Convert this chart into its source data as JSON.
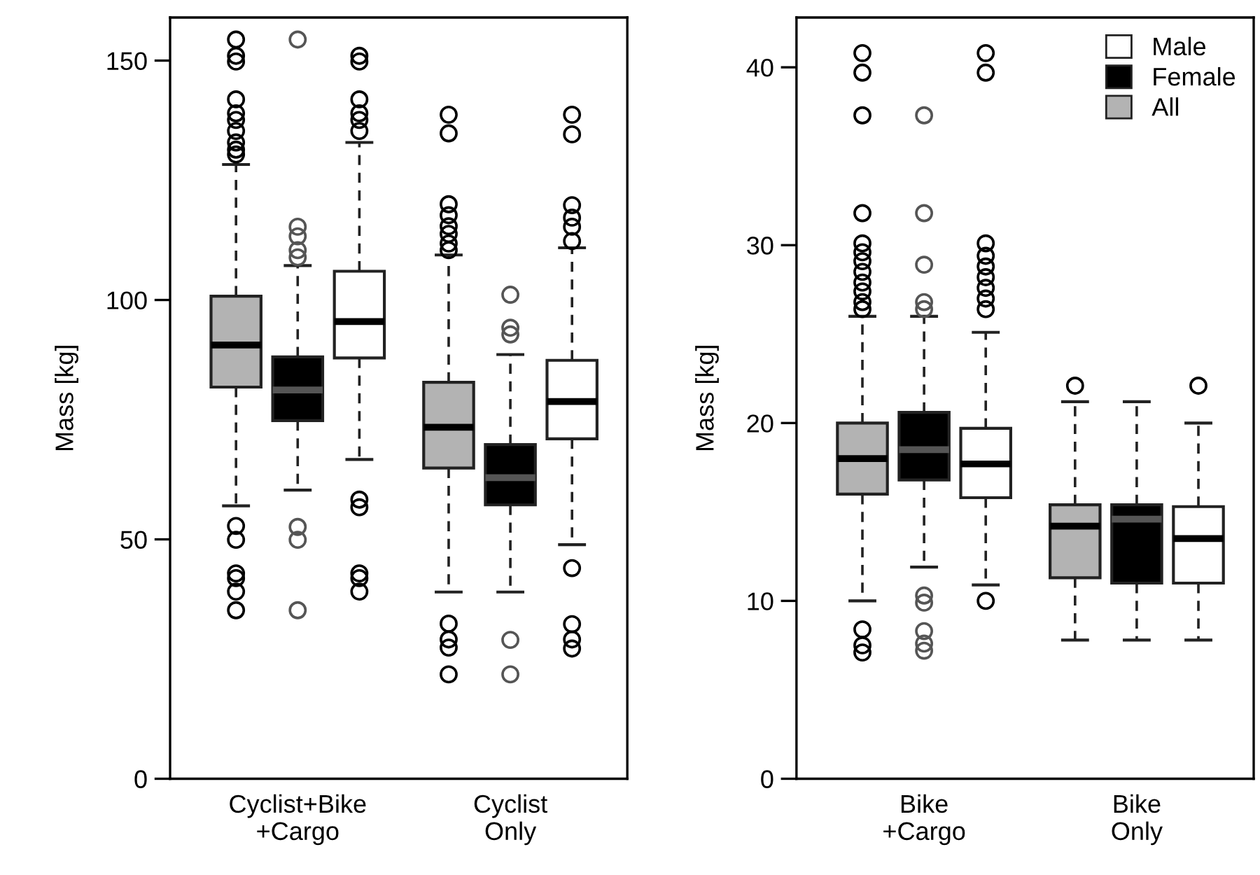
{
  "chart_data": [
    {
      "type": "box",
      "categories": [
        "Cyclist+Bike\n+Cargo",
        "Cyclist\nOnly"
      ],
      "ylabel": "Mass [kg]",
      "ylim": [
        0,
        159
      ],
      "yticks": [
        0,
        50,
        100,
        150
      ],
      "grid": false,
      "legend": false,
      "series": [
        {
          "color": "#b3b3b3",
          "boxes": [
            {
              "low": 57.0,
              "q1": 81.8,
              "median": 90.6,
              "q3": 100.8,
              "high": 128.3,
              "outliers": [
                154.4,
                151,
                149.8,
                141.9,
                139,
                137.6,
                135.3,
                132.9,
                131.4,
                130.4,
                52.8,
                49.9,
                42.9,
                41.9,
                39.1,
                35.2
              ]
            },
            {
              "low": 39.0,
              "q1": 64.9,
              "median": 73.4,
              "q3": 82.8,
              "high": 109.4,
              "outliers": [
                138.7,
                134.8,
                120,
                117.7,
                115.4,
                113.8,
                111.8,
                110.4,
                32.4,
                29.1,
                27.4,
                21.8
              ]
            }
          ]
        },
        {
          "color": "#000000",
          "boxes": [
            {
              "low": 60.3,
              "q1": 74.8,
              "median": 81.2,
              "q3": 88.1,
              "high": 107.2,
              "outliers": [
                154.4,
                115.3,
                113.3,
                110.4,
                108.9,
                52.6,
                49.9,
                35.2
              ]
            },
            {
              "low": 39.0,
              "q1": 57.2,
              "median": 62.9,
              "q3": 69.8,
              "high": 88.6,
              "outliers": [
                101.1,
                94.2,
                92.8,
                29,
                21.8
              ]
            }
          ]
        },
        {
          "color": "#ffffff",
          "boxes": [
            {
              "low": 66.7,
              "q1": 87.9,
              "median": 95.5,
              "q3": 106,
              "high": 132.9,
              "outliers": [
                151,
                149.8,
                141.9,
                139,
                137.6,
                135.3,
                58.3,
                56.7,
                42.9,
                41.9,
                39.1
              ]
            },
            {
              "low": 48.9,
              "q1": 71.0,
              "median": 78.8,
              "q3": 87.4,
              "high": 110.9,
              "outliers": [
                138.7,
                134.6,
                119.8,
                117.2,
                115.3,
                112.3,
                44.0,
                32.3,
                29.1,
                27.2
              ]
            }
          ]
        }
      ]
    },
    {
      "type": "box",
      "categories": [
        "Bike\n+Cargo",
        "Bike\nOnly"
      ],
      "ylabel": "Mass [kg]",
      "ylim": [
        0,
        42.8
      ],
      "yticks": [
        0,
        10,
        20,
        30,
        40
      ],
      "grid": false,
      "legend": "top right",
      "series": [
        {
          "name": "All",
          "color": "#b3b3b3",
          "boxes": [
            {
              "low": 10.0,
              "q1": 16.0,
              "median": 18.0,
              "q3": 20.0,
              "high": 26.0,
              "outliers": [
                40.8,
                39.7,
                37.3,
                31.8,
                30.1,
                29.6,
                29.1,
                28.5,
                27.9,
                27.4,
                26.8,
                26.4,
                8.4,
                7.5,
                7.1
              ]
            },
            {
              "low": 7.8,
              "q1": 11.3,
              "median": 14.2,
              "q3": 15.4,
              "high": 21.2,
              "outliers": [
                22.1
              ]
            }
          ]
        },
        {
          "name": "Female",
          "color": "#000000",
          "boxes": [
            {
              "low": 11.9,
              "q1": 16.8,
              "median": 18.5,
              "q3": 20.6,
              "high": 26.0,
              "outliers": [
                37.3,
                31.8,
                28.9,
                26.8,
                26.4,
                10.3,
                9.9,
                8.3,
                7.6,
                7.2
              ]
            },
            {
              "low": 7.8,
              "q1": 11.0,
              "median": 14.6,
              "q3": 15.4,
              "high": 21.2
            }
          ]
        },
        {
          "name": "Male",
          "color": "#ffffff",
          "boxes": [
            {
              "low": 10.9,
              "q1": 15.8,
              "median": 17.7,
              "q3": 19.7,
              "high": 25.1,
              "outliers": [
                40.8,
                39.7,
                30.1,
                29.4,
                28.8,
                28.2,
                27.6,
                27.0,
                26.4,
                10.0
              ]
            },
            {
              "low": 7.8,
              "q1": 11.0,
              "median": 13.5,
              "q3": 15.3,
              "high": 20.0,
              "outliers": [
                22.1
              ]
            }
          ]
        }
      ]
    }
  ]
}
